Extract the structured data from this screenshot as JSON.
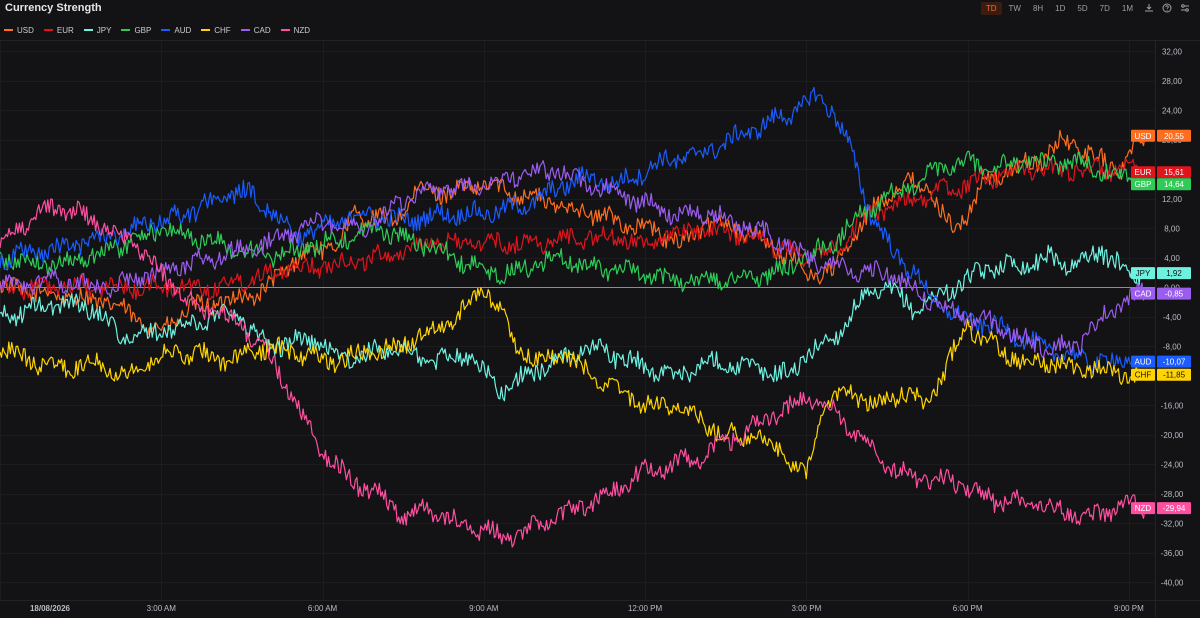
{
  "header": {
    "title": "Currency Strength",
    "timeframes": [
      "TD",
      "TW",
      "8H",
      "1D",
      "5D",
      "7D",
      "1M"
    ],
    "active_timeframe": "TD",
    "icons": [
      "download-icon",
      "help-icon",
      "settings-icon"
    ]
  },
  "colors": {
    "USD": "#ff6d1f",
    "EUR": "#e0141c",
    "JPY": "#6ef2e0",
    "GBP": "#2ecc57",
    "AUD": "#1a5cff",
    "CHF": "#ffd400",
    "CAD": "#9b5cf0",
    "NZD": "#ff4fa0"
  },
  "chart_data": {
    "type": "line",
    "title": "Currency Strength",
    "x_axis_ticks": [
      "18/08/2026",
      "3:00 AM",
      "6:00 AM",
      "9:00 AM",
      "12:00 PM",
      "3:00 PM",
      "6:00 PM",
      "9:00 PM"
    ],
    "x_tick_hours": [
      0,
      3,
      6,
      9,
      12,
      15,
      18,
      21
    ],
    "x_range_hours": [
      0,
      21.3
    ],
    "y_axis_ticks": [
      "32,00",
      "28,00",
      "24,00",
      "20,00",
      "16,00",
      "12,00",
      "8,00",
      "4,00",
      "0,00",
      "-4,00",
      "-8,00",
      "-12,00",
      "-16,00",
      "-20,00",
      "-24,00",
      "-28,00",
      "-32,00",
      "-36,00",
      "-40,00"
    ],
    "ylim": [
      -42,
      33
    ],
    "series": [
      {
        "name": "USD",
        "last": "20,55",
        "values": [
          [
            0,
            0
          ],
          [
            1,
            -1
          ],
          [
            2,
            -2
          ],
          [
            2.5,
            -4
          ],
          [
            3,
            -6
          ],
          [
            3.5,
            -3
          ],
          [
            4.7,
            -1
          ],
          [
            5,
            0
          ],
          [
            5.5,
            4
          ],
          [
            6.3,
            6
          ],
          [
            6.6,
            10
          ],
          [
            7.3,
            9
          ],
          [
            7.8,
            13
          ],
          [
            8.5,
            13
          ],
          [
            9,
            14
          ],
          [
            10,
            12
          ],
          [
            11,
            10
          ],
          [
            12,
            8
          ],
          [
            12.7,
            6
          ],
          [
            13.2,
            9
          ],
          [
            13.8,
            8
          ],
          [
            14.5,
            5
          ],
          [
            15,
            2
          ],
          [
            15.5,
            2
          ],
          [
            15.8,
            6
          ],
          [
            16.2,
            10
          ],
          [
            16.7,
            14
          ],
          [
            17.2,
            14
          ],
          [
            17.7,
            8
          ],
          [
            17.9,
            9
          ],
          [
            18.3,
            14
          ],
          [
            18.8,
            16
          ],
          [
            19.3,
            17
          ],
          [
            19.8,
            20
          ],
          [
            20.3,
            18
          ],
          [
            20.8,
            16
          ],
          [
            21.3,
            20.55
          ]
        ]
      },
      {
        "name": "EUR",
        "last": "15,61",
        "values": [
          [
            0,
            0
          ],
          [
            1,
            0
          ],
          [
            2,
            0
          ],
          [
            3,
            0
          ],
          [
            4,
            0
          ],
          [
            5,
            2
          ],
          [
            6,
            3
          ],
          [
            7,
            4
          ],
          [
            8,
            6
          ],
          [
            9,
            6
          ],
          [
            10,
            6
          ],
          [
            11,
            7
          ],
          [
            12,
            6
          ],
          [
            13,
            8
          ],
          [
            14,
            7
          ],
          [
            15,
            4
          ],
          [
            15.5,
            5
          ],
          [
            16,
            9
          ],
          [
            16.5,
            11
          ],
          [
            17,
            12
          ],
          [
            17.5,
            13
          ],
          [
            18,
            14
          ],
          [
            18.5,
            15
          ],
          [
            19,
            16
          ],
          [
            19.5,
            16
          ],
          [
            20,
            16
          ],
          [
            20.5,
            16
          ],
          [
            21.3,
            15.61
          ]
        ]
      },
      {
        "name": "JPY",
        "last": "1,92",
        "values": [
          [
            0,
            -4
          ],
          [
            0.6,
            -3
          ],
          [
            1.2,
            -2
          ],
          [
            1.8,
            -3
          ],
          [
            2.3,
            -7
          ],
          [
            3,
            -6
          ],
          [
            3.6,
            -5
          ],
          [
            4.3,
            -3
          ],
          [
            5,
            -8
          ],
          [
            5.8,
            -7
          ],
          [
            6.5,
            -10
          ],
          [
            7.3,
            -8
          ],
          [
            8,
            -10
          ],
          [
            8.7,
            -9
          ],
          [
            9.3,
            -14
          ],
          [
            9.8,
            -12
          ],
          [
            10.3,
            -10
          ],
          [
            11,
            -8
          ],
          [
            11.7,
            -10
          ],
          [
            12.5,
            -12
          ],
          [
            13.3,
            -10
          ],
          [
            14,
            -11
          ],
          [
            14.7,
            -12
          ],
          [
            15,
            -9
          ],
          [
            15.5,
            -7
          ],
          [
            16,
            -2
          ],
          [
            16.5,
            0
          ],
          [
            17,
            -3
          ],
          [
            17.5,
            -1
          ],
          [
            18,
            1
          ],
          [
            18.5,
            3
          ],
          [
            19,
            3
          ],
          [
            19.5,
            4
          ],
          [
            20,
            3
          ],
          [
            20.5,
            5
          ],
          [
            21,
            2
          ],
          [
            21.3,
            1.92
          ]
        ]
      },
      {
        "name": "GBP",
        "last": "14,64",
        "values": [
          [
            0,
            4
          ],
          [
            1,
            3
          ],
          [
            2,
            5
          ],
          [
            3,
            8
          ],
          [
            4,
            6
          ],
          [
            5,
            4
          ],
          [
            6,
            6
          ],
          [
            7,
            8
          ],
          [
            7.8,
            6
          ],
          [
            8.5,
            4
          ],
          [
            9,
            2
          ],
          [
            9.6,
            2
          ],
          [
            10.3,
            4
          ],
          [
            11,
            3
          ],
          [
            11.7,
            2
          ],
          [
            12.5,
            1
          ],
          [
            13.5,
            1
          ],
          [
            14.5,
            2
          ],
          [
            15,
            4
          ],
          [
            15.5,
            6
          ],
          [
            16,
            10
          ],
          [
            16.5,
            12
          ],
          [
            17,
            14
          ],
          [
            17.5,
            16
          ],
          [
            18,
            17
          ],
          [
            18.5,
            16
          ],
          [
            19,
            17
          ],
          [
            19.5,
            17
          ],
          [
            20,
            17
          ],
          [
            20.5,
            16
          ],
          [
            21,
            15
          ],
          [
            21.3,
            14.64
          ]
        ]
      },
      {
        "name": "AUD",
        "last": "-10,07",
        "values": [
          [
            0,
            4
          ],
          [
            1,
            5
          ],
          [
            2,
            7
          ],
          [
            3,
            9
          ],
          [
            3.5,
            10
          ],
          [
            4,
            12
          ],
          [
            4.5,
            13
          ],
          [
            5,
            11
          ],
          [
            5.5,
            7
          ],
          [
            6,
            8
          ],
          [
            6.7,
            10
          ],
          [
            7.5,
            9
          ],
          [
            8.3,
            10
          ],
          [
            9,
            10
          ],
          [
            9.7,
            11
          ],
          [
            10.3,
            13
          ],
          [
            10.8,
            15
          ],
          [
            11.5,
            14
          ],
          [
            12.3,
            17
          ],
          [
            13,
            18
          ],
          [
            13.6,
            20
          ],
          [
            14.2,
            22
          ],
          [
            14.8,
            24
          ],
          [
            15.2,
            26
          ],
          [
            15.5,
            24
          ],
          [
            15.8,
            19
          ],
          [
            16.2,
            10
          ],
          [
            16.6,
            5
          ],
          [
            17,
            2
          ],
          [
            17.4,
            -2
          ],
          [
            17.8,
            -4
          ],
          [
            18.3,
            -5
          ],
          [
            18.8,
            -6
          ],
          [
            19.3,
            -8
          ],
          [
            19.8,
            -9
          ],
          [
            20.3,
            -10
          ],
          [
            20.8,
            -10
          ],
          [
            21.3,
            -10.07
          ]
        ]
      },
      {
        "name": "CHF",
        "last": "-11,85",
        "values": [
          [
            0,
            -8
          ],
          [
            0.6,
            -10
          ],
          [
            1.2,
            -11
          ],
          [
            1.8,
            -10
          ],
          [
            2.4,
            -12
          ],
          [
            3,
            -9
          ],
          [
            3.6,
            -9
          ],
          [
            4.3,
            -10
          ],
          [
            5,
            -8
          ],
          [
            5.6,
            -9
          ],
          [
            6.2,
            -10
          ],
          [
            6.8,
            -9
          ],
          [
            7.4,
            -8
          ],
          [
            8,
            -6
          ],
          [
            8.5,
            -4
          ],
          [
            9,
            0
          ],
          [
            9.3,
            -3
          ],
          [
            9.6,
            -8
          ],
          [
            10,
            -10
          ],
          [
            10.5,
            -9
          ],
          [
            11,
            -12
          ],
          [
            11.5,
            -14
          ],
          [
            12,
            -16
          ],
          [
            12.5,
            -16
          ],
          [
            13,
            -18
          ],
          [
            13.5,
            -20
          ],
          [
            14,
            -20
          ],
          [
            14.5,
            -22
          ],
          [
            15,
            -26
          ],
          [
            15.3,
            -16
          ],
          [
            15.8,
            -14
          ],
          [
            16.3,
            -16
          ],
          [
            16.8,
            -14
          ],
          [
            17.2,
            -16
          ],
          [
            17.6,
            -11
          ],
          [
            18,
            -5
          ],
          [
            18.5,
            -8
          ],
          [
            19,
            -10
          ],
          [
            19.5,
            -10
          ],
          [
            20,
            -11
          ],
          [
            20.5,
            -11
          ],
          [
            21,
            -12
          ],
          [
            21.3,
            -11.85
          ]
        ]
      },
      {
        "name": "CAD",
        "last": "-0,85",
        "values": [
          [
            0,
            0
          ],
          [
            1,
            1
          ],
          [
            2,
            0
          ],
          [
            3,
            2
          ],
          [
            4,
            4
          ],
          [
            5,
            6
          ],
          [
            6,
            9
          ],
          [
            6.8,
            8
          ],
          [
            7.5,
            12
          ],
          [
            8.2,
            13
          ],
          [
            9,
            14
          ],
          [
            9.6,
            15
          ],
          [
            10.3,
            16
          ],
          [
            11,
            14
          ],
          [
            11.7,
            12
          ],
          [
            12.5,
            10
          ],
          [
            13.2,
            10
          ],
          [
            14,
            8
          ],
          [
            14.6,
            6
          ],
          [
            15,
            4
          ],
          [
            15.5,
            3
          ],
          [
            16,
            2
          ],
          [
            16.5,
            2
          ],
          [
            17,
            0
          ],
          [
            17.5,
            -3
          ],
          [
            18,
            -4
          ],
          [
            18.5,
            -5
          ],
          [
            19,
            -7
          ],
          [
            19.5,
            -8
          ],
          [
            20,
            -8
          ],
          [
            20.4,
            -5
          ],
          [
            20.8,
            -2
          ],
          [
            21.3,
            -0.85
          ]
        ]
      },
      {
        "name": "NZD",
        "last": "-29,94",
        "values": [
          [
            0,
            6
          ],
          [
            0.5,
            9
          ],
          [
            1,
            11
          ],
          [
            1.5,
            10
          ],
          [
            2,
            8
          ],
          [
            2.5,
            6
          ],
          [
            3,
            2
          ],
          [
            3.5,
            -2
          ],
          [
            4.5,
            -5
          ],
          [
            5,
            -9
          ],
          [
            5.5,
            -16
          ],
          [
            6,
            -22
          ],
          [
            6.5,
            -26
          ],
          [
            7,
            -28
          ],
          [
            7.5,
            -31
          ],
          [
            8,
            -30
          ],
          [
            8.5,
            -32
          ],
          [
            9,
            -33
          ],
          [
            9.5,
            -34
          ],
          [
            10,
            -32
          ],
          [
            10.5,
            -31
          ],
          [
            11,
            -29
          ],
          [
            11.5,
            -27
          ],
          [
            12,
            -25
          ],
          [
            12.5,
            -24
          ],
          [
            13,
            -23
          ],
          [
            13.5,
            -21
          ],
          [
            14,
            -19
          ],
          [
            14.5,
            -17
          ],
          [
            15,
            -15
          ],
          [
            15.5,
            -17
          ],
          [
            16,
            -20
          ],
          [
            16.5,
            -24
          ],
          [
            17,
            -26
          ],
          [
            17.5,
            -26
          ],
          [
            18,
            -27
          ],
          [
            18.5,
            -29
          ],
          [
            19,
            -29
          ],
          [
            19.5,
            -30
          ],
          [
            20,
            -31
          ],
          [
            20.5,
            -31
          ],
          [
            21,
            -29
          ],
          [
            21.3,
            -29.94
          ]
        ]
      }
    ]
  }
}
